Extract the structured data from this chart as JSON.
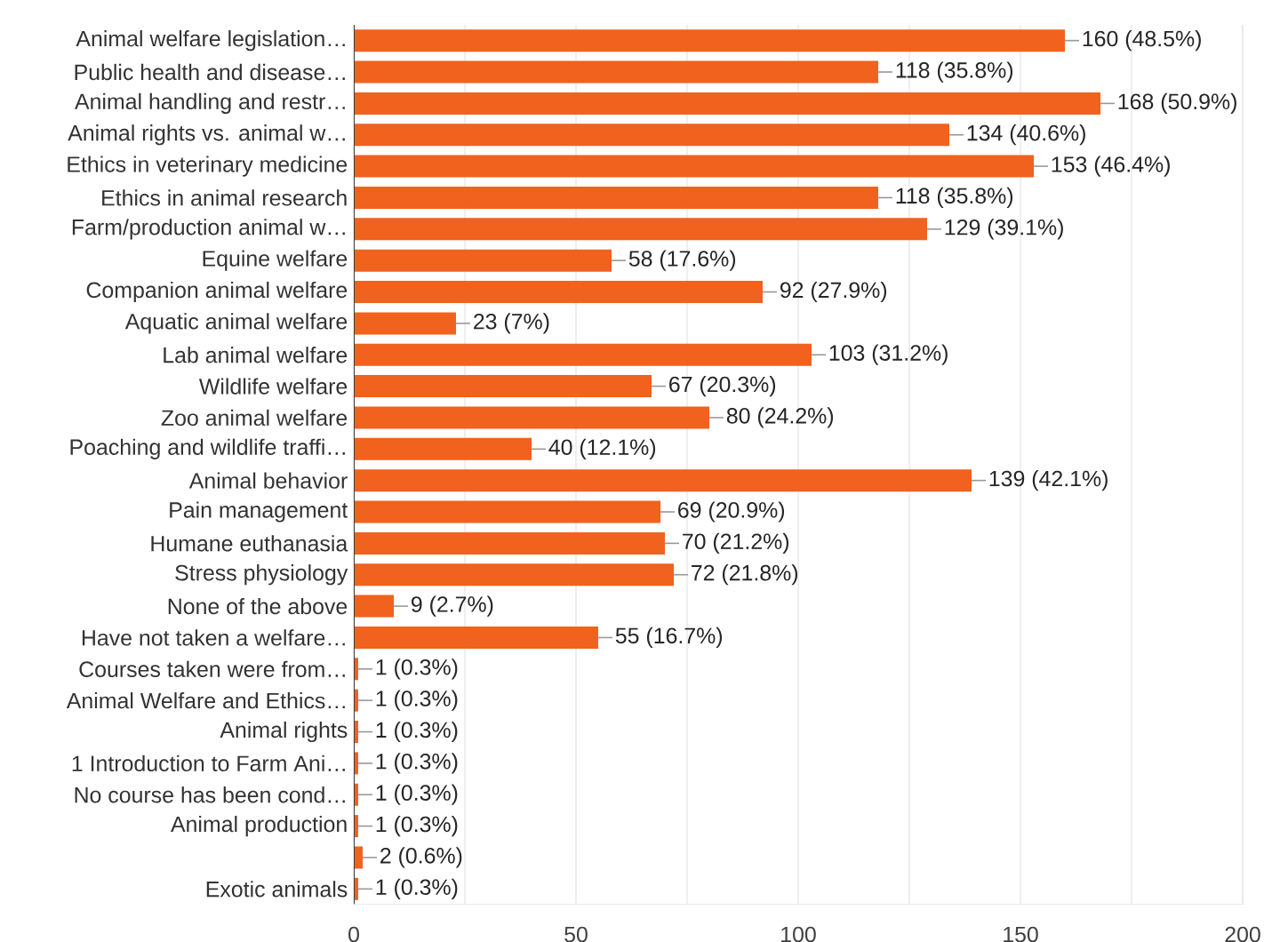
{
  "chart_data": {
    "type": "bar",
    "orientation": "horizontal",
    "color": "#f1621f",
    "grid": "x",
    "categories": [
      "Animal welfare legislation…",
      "Public health and disease…",
      "Animal handling and restr…",
      "Animal rights vs. animal w…",
      "Ethics in veterinary medicine",
      "Ethics in animal research",
      "Farm/production animal w…",
      "Equine welfare",
      "Companion animal welfare",
      "Aquatic animal welfare",
      "Lab animal welfare",
      "Wildlife welfare",
      "Zoo animal welfare",
      "Poaching and wildlife traffi…",
      "Animal behavior",
      "Pain management",
      "Humane euthanasia",
      "Stress physiology",
      "None of the above",
      "Have not taken a welfare…",
      "Courses taken were from…",
      "Animal Welfare and Ethics…",
      "Animal rights",
      "1 Introduction to Farm Ani…",
      "No course has been cond…",
      "Animal production",
      null,
      "Exotic animals"
    ],
    "values": [
      160,
      118,
      168,
      134,
      153,
      118,
      129,
      58,
      92,
      23,
      103,
      67,
      80,
      40,
      139,
      69,
      70,
      72,
      9,
      55,
      1,
      1,
      1,
      1,
      1,
      1,
      2,
      1
    ],
    "value_labels": [
      "160 (48.5%)",
      "118 (35.8%)",
      "168 (50.9%)",
      "134 (40.6%)",
      "153 (46.4%)",
      "118 (35.8%)",
      "129 (39.1%)",
      "58 (17.6%)",
      "92 (27.9%)",
      "23 (7%)",
      "103 (31.2%)",
      "67 (20.3%)",
      "80 (24.2%)",
      "40 (12.1%)",
      "139 (42.1%)",
      "69 (20.9%)",
      "70 (21.2%)",
      "72 (21.8%)",
      "9 (2.7%)",
      "55 (16.7%)",
      "1 (0.3%)",
      "1 (0.3%)",
      "1 (0.3%)",
      "1 (0.3%)",
      "1 (0.3%)",
      "1 (0.3%)",
      "2 (0.6%)",
      "1 (0.3%)"
    ],
    "xlim": [
      0,
      200
    ],
    "xticks": [
      0,
      {
        "value": 25,
        "label": null
      },
      50,
      {
        "value": 75,
        "label": null
      },
      100,
      {
        "value": 125,
        "label": null
      },
      150,
      {
        "value": 175,
        "label": null
      },
      200
    ]
  }
}
